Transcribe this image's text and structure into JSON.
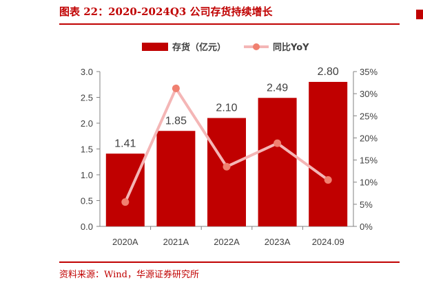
{
  "header": {
    "title": "图表 22：2020-2024Q3 公司存货持续增长"
  },
  "footer": {
    "source": "资料来源：Wind，华源证券研究所"
  },
  "chart_data": {
    "type": "bar",
    "title": "",
    "categories": [
      "2020A",
      "2021A",
      "2022A",
      "2023A",
      "2024.09"
    ],
    "series": [
      {
        "name": "存货（亿元）",
        "type": "bar",
        "axis": "left",
        "color": "#c00000",
        "values": [
          1.41,
          1.85,
          2.1,
          2.49,
          2.8
        ],
        "labels": [
          "1.41",
          "1.85",
          "2.10",
          "2.49",
          "2.80"
        ]
      },
      {
        "name": "同比YoY",
        "type": "line",
        "axis": "right",
        "color": "#f4b6b6",
        "marker_color": "#f08070",
        "values": [
          5.5,
          31.2,
          13.5,
          18.8,
          10.5
        ]
      }
    ],
    "y_left": {
      "min": 0,
      "max": 3.0,
      "ticks": [
        "0.0",
        "0.5",
        "1.0",
        "1.5",
        "2.0",
        "2.5",
        "3.0"
      ]
    },
    "y_right": {
      "min": 0,
      "max": 35,
      "ticks": [
        "0%",
        "5%",
        "10%",
        "15%",
        "20%",
        "25%",
        "30%",
        "35%"
      ]
    },
    "legend": "top-center",
    "grid": false
  }
}
